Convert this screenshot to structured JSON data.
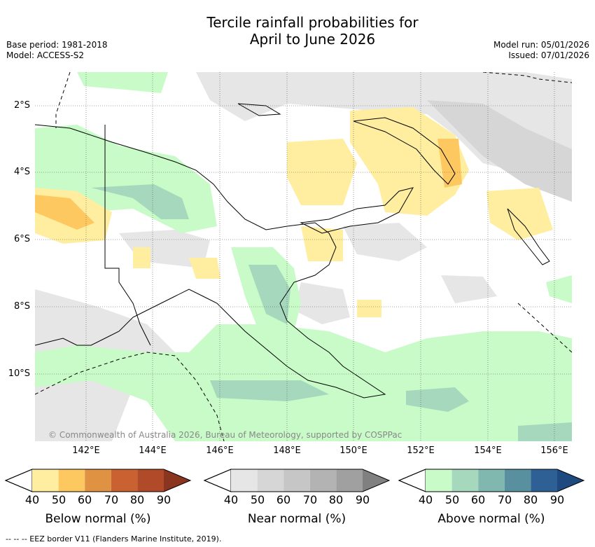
{
  "title_line1": "Tercile rainfall probabilities for",
  "title_line2": "April to June 2026",
  "base_period": "Base period: 1981-2018",
  "model": "Model: ACCESS-S2",
  "model_run": "Model run: 05/01/2026",
  "issued": "Issued: 07/01/2026",
  "lat_labels": [
    "2°S",
    "4°S",
    "6°S",
    "8°S",
    "10°S"
  ],
  "lon_labels": [
    "142°E",
    "144°E",
    "146°E",
    "148°E",
    "150°E",
    "152°E",
    "154°E",
    "156°E"
  ],
  "copyright": "© Commonwealth of Australia 2026, Bureau of Meteorology, supported by COSPPac",
  "colorbars": [
    {
      "label": "Below normal (%)",
      "ticks": [
        "40",
        "50",
        "60",
        "70",
        "80",
        "90"
      ],
      "colors": [
        "#ffeea0",
        "#fec861",
        "#e09243",
        "#c96230",
        "#b14a28",
        "#8b3520"
      ]
    },
    {
      "label": "Near normal (%)",
      "ticks": [
        "40",
        "50",
        "60",
        "70",
        "80",
        "90"
      ],
      "colors": [
        "#e6e6e6",
        "#d6d6d6",
        "#c6c6c6",
        "#b3b3b3",
        "#a0a0a0",
        "#808080"
      ]
    },
    {
      "label": "Above normal (%)",
      "ticks": [
        "40",
        "50",
        "60",
        "70",
        "80",
        "90"
      ],
      "colors": [
        "#c8fbc8",
        "#a5d8bc",
        "#80b8b0",
        "#5890a0",
        "#2f6095",
        "#1e4a80"
      ]
    }
  ],
  "footer": "--  --  -- EEZ border V11 (Flanders Marine Institute, 2019)."
}
